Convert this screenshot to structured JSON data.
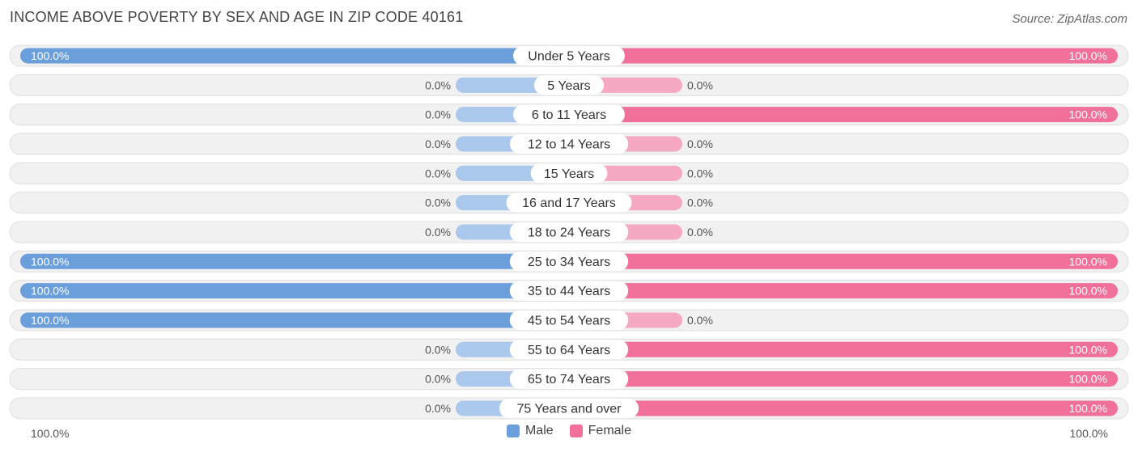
{
  "title": "INCOME ABOVE POVERTY BY SEX AND AGE IN ZIP CODE 40161",
  "source": "Source: ZipAtlas.com",
  "colors": {
    "male_full": "#6a9fdb",
    "male_light": "#a9c8ec",
    "female_full": "#f07099",
    "female_light": "#f5a8c2",
    "track": "#f1f1f1",
    "track_border": "#dedede"
  },
  "chart_data": {
    "type": "bar",
    "orientation": "horizontal-diverging",
    "categories": [
      "Under 5 Years",
      "5 Years",
      "6 to 11 Years",
      "12 to 14 Years",
      "15 Years",
      "16 and 17 Years",
      "18 to 24 Years",
      "25 to 34 Years",
      "35 to 44 Years",
      "45 to 54 Years",
      "55 to 64 Years",
      "65 to 74 Years",
      "75 Years and over"
    ],
    "series": [
      {
        "name": "Male",
        "values": [
          100.0,
          0.0,
          0.0,
          0.0,
          0.0,
          0.0,
          0.0,
          100.0,
          100.0,
          100.0,
          0.0,
          0.0,
          0.0
        ]
      },
      {
        "name": "Female",
        "values": [
          100.0,
          0.0,
          100.0,
          0.0,
          0.0,
          0.0,
          0.0,
          100.0,
          100.0,
          0.0,
          100.0,
          100.0,
          100.0
        ]
      }
    ],
    "value_labels": {
      "male": [
        "100.0%",
        "0.0%",
        "0.0%",
        "0.0%",
        "0.0%",
        "0.0%",
        "0.0%",
        "100.0%",
        "100.0%",
        "100.0%",
        "0.0%",
        "0.0%",
        "0.0%"
      ],
      "female": [
        "100.0%",
        "0.0%",
        "100.0%",
        "0.0%",
        "0.0%",
        "0.0%",
        "0.0%",
        "100.0%",
        "100.0%",
        "0.0%",
        "100.0%",
        "100.0%",
        "100.0%"
      ]
    },
    "xlim": [
      -100,
      100
    ],
    "axis_left_label": "100.0%",
    "axis_right_label": "100.0%",
    "legend": {
      "position": "bottom-center",
      "items": [
        "Male",
        "Female"
      ]
    }
  }
}
